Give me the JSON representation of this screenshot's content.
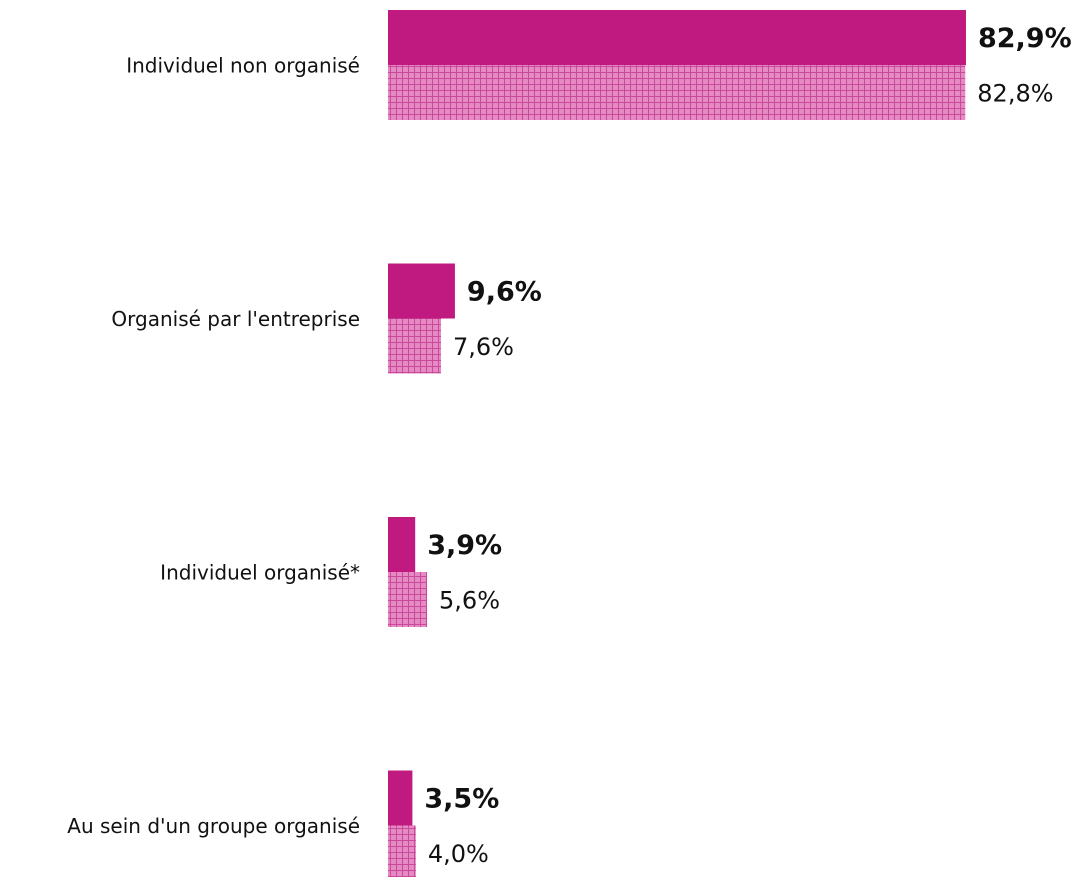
{
  "chart_data": {
    "type": "bar",
    "orientation": "horizontal",
    "categories": [
      "Individuel non organisé",
      "Organisé par l'entreprise",
      "Individuel organisé*",
      "Au sein d'un groupe organisé"
    ],
    "series": [
      {
        "color": "#c0197f",
        "values": [
          82.9,
          9.6,
          3.9,
          3.5
        ],
        "value_labels": [
          "82,9%",
          "9,6%",
          "3,9%",
          "3,5%"
        ]
      },
      {
        "color": "#e58ac3",
        "pattern": "grid",
        "values": [
          82.8,
          7.6,
          5.6,
          4.0
        ],
        "value_labels": [
          "82,8%",
          "7,6%",
          "5,6%",
          "4,0%"
        ]
      }
    ]
  }
}
